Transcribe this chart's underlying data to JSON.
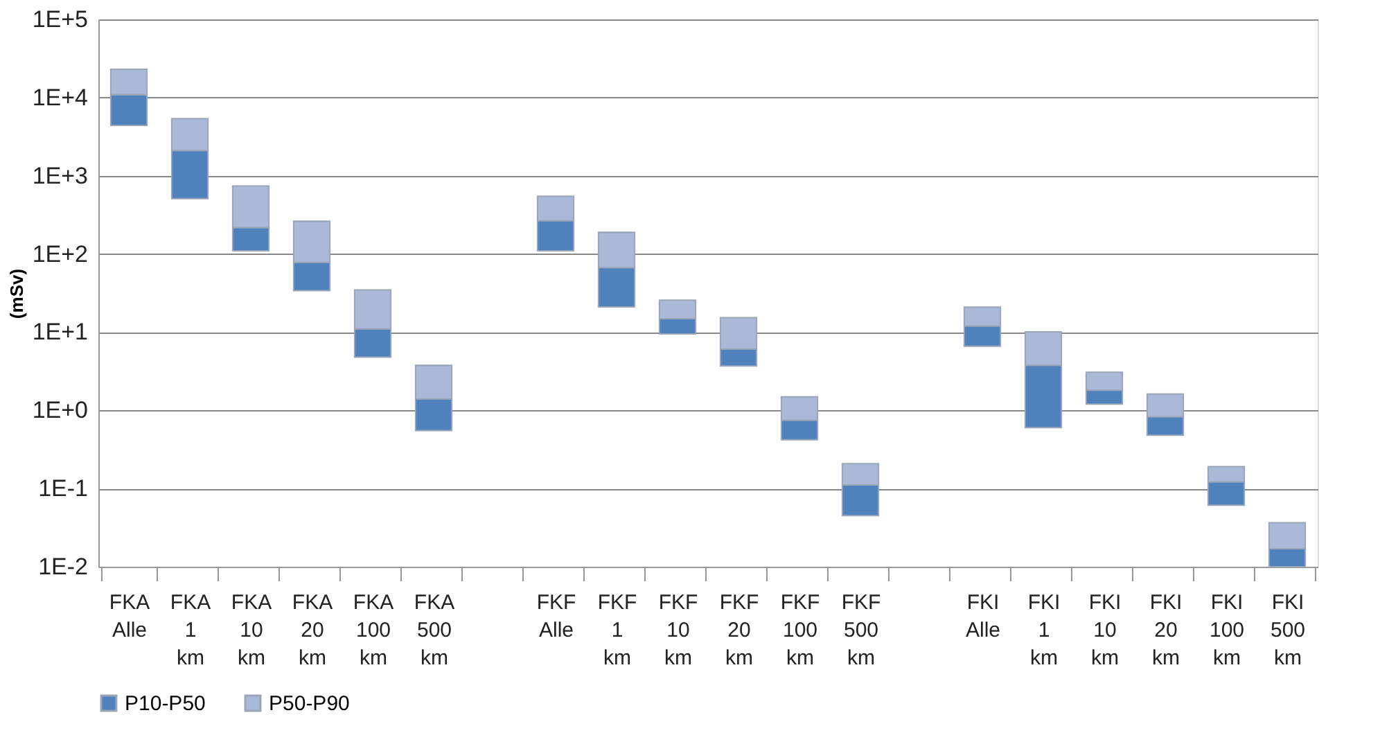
{
  "chart_data": {
    "type": "bar",
    "ylabel": "(mSv)",
    "log": "y",
    "grid": "y",
    "legend": "bottom",
    "categories": [
      "FKA\nAlle",
      "FKA\n1\nkm",
      "FKA\n10\nkm",
      "FKA\n20\nkm",
      "FKA\n100\nkm",
      "FKA\n500\nkm",
      null,
      "FKF\nAlle",
      "FKF\n1\nkm",
      "FKF\n10\nkm",
      "FKF\n20\nkm",
      "FKF\n100\nkm",
      "FKF\n500\nkm",
      null,
      "FKI\nAlle",
      "FKI\n1\nkm",
      "FKI\n10\nkm",
      "FKI\n20\nkm",
      "FKI\n100\nkm",
      "FKI\n500\nkm"
    ],
    "series": [
      {
        "name": "P10-P50",
        "color": "#4f81bd",
        "base": [
          4400,
          510,
          110,
          34,
          4.8,
          0.55,
          null,
          110,
          21,
          9.5,
          3.7,
          0.42,
          0.045,
          null,
          6.6,
          0.6,
          1.2,
          0.48,
          0.061,
          0.01
        ],
        "values": [
          6500,
          1590,
          107,
          44,
          6.2,
          0.85,
          null,
          156,
          46,
          5.4,
          2.4,
          0.33,
          0.066,
          null,
          5.4,
          3.17,
          0.61,
          0.35,
          0.061,
          0.007
        ]
      },
      {
        "name": "P50-P90",
        "color": "#aab9d8",
        "base": [
          10900,
          2100,
          217,
          78,
          11,
          1.4,
          null,
          266,
          67,
          14.9,
          6.1,
          0.75,
          0.111,
          null,
          12,
          3.77,
          1.81,
          0.83,
          0.122,
          0.017
        ],
        "values": [
          12100,
          3270,
          521,
          184,
          23.6,
          2.37,
          null,
          281,
          122,
          10.7,
          9.2,
          0.74,
          0.097,
          null,
          8.9,
          6.33,
          1.26,
          0.79,
          0.069,
          0.0195
        ]
      }
    ],
    "ylim": [
      0.01,
      100000
    ],
    "yticks": [
      {
        "value": 0.01,
        "label": "1E-2"
      },
      {
        "value": 0.1,
        "label": "1E-1"
      },
      {
        "value": 1,
        "label": "1E+0"
      },
      {
        "value": 10,
        "label": "1E+1"
      },
      {
        "value": 100,
        "label": "1E+2"
      },
      {
        "value": 1000,
        "label": "1E+3"
      },
      {
        "value": 10000,
        "label": "1E+4"
      },
      {
        "value": 100000,
        "label": "1E+5"
      }
    ]
  }
}
